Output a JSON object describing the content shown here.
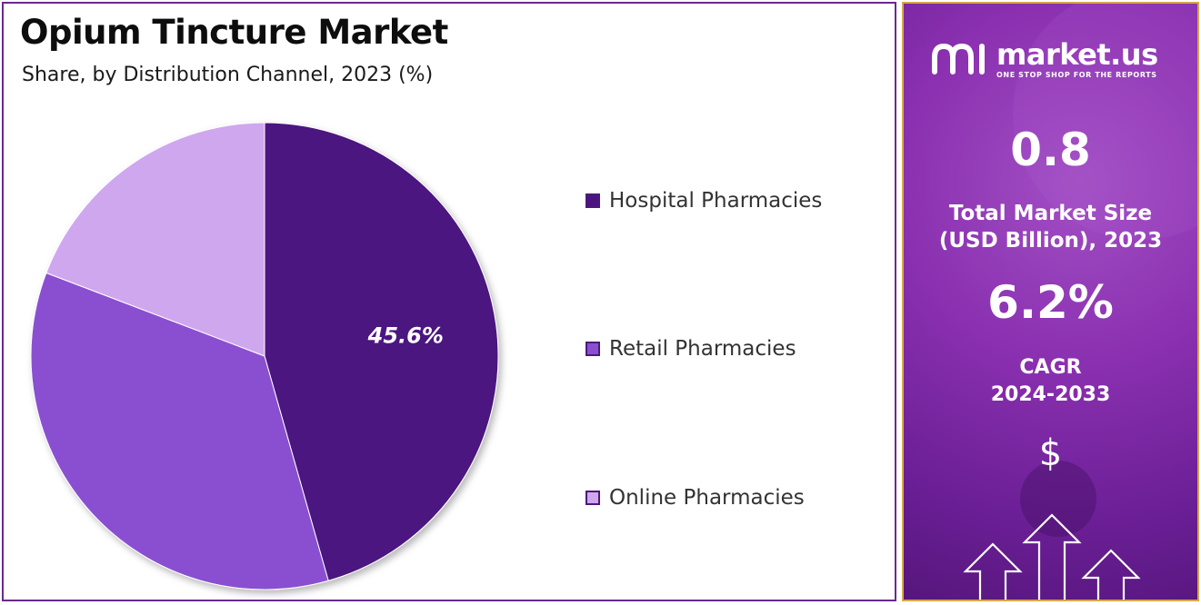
{
  "left_panel": {
    "title": "Opium Tincture Market",
    "subtitle": "Share, by Distribution Channel, 2023 (%)"
  },
  "chart_data": {
    "type": "pie",
    "title": "Opium Tincture Market",
    "subtitle": "Share, by Distribution Channel, 2023 (%)",
    "categories": [
      "Hospital Pharmacies",
      "Retail Pharmacies",
      "Online Pharmacies"
    ],
    "values": [
      45.6,
      35.2,
      19.2
    ],
    "colors": [
      "#4c1480",
      "#8a4fd1",
      "#cfa7ee"
    ],
    "data_labels": [
      "45.6%",
      "",
      ""
    ],
    "legend_position": "right"
  },
  "right_panel": {
    "brand_name": "market.us",
    "brand_tagline": "ONE STOP SHOP FOR THE REPORTS",
    "market_size_value": "0.8",
    "market_size_label_line1": "Total Market Size",
    "market_size_label_line2": "(USD Billion), 2023",
    "cagr_value": "6.2%",
    "cagr_label_line1": "CAGR",
    "cagr_label_line2": "2024-2033",
    "dollar_symbol": "$",
    "logo_icon": "market-us-logo-icon",
    "arrows_icon": "growth-arrows-icon"
  }
}
